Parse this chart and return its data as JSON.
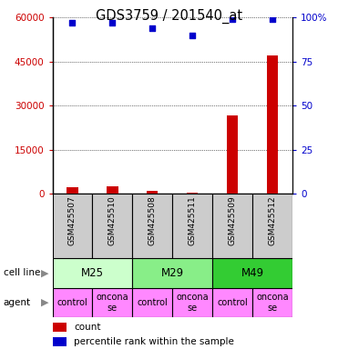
{
  "title": "GDS3759 / 201540_at",
  "samples": [
    "GSM425507",
    "GSM425510",
    "GSM425508",
    "GSM425511",
    "GSM425509",
    "GSM425512"
  ],
  "counts": [
    2200,
    2500,
    900,
    500,
    26500,
    47000
  ],
  "percentile_ranks": [
    97,
    97,
    94,
    90,
    99,
    99
  ],
  "cell_lines": [
    {
      "label": "M25",
      "start": 0,
      "end": 2,
      "color": "#ccffcc"
    },
    {
      "label": "M29",
      "start": 2,
      "end": 4,
      "color": "#88ee88"
    },
    {
      "label": "M49",
      "start": 4,
      "end": 6,
      "color": "#33cc33"
    }
  ],
  "agents": [
    "control",
    "onconase",
    "control",
    "onconase",
    "control",
    "onconase"
  ],
  "agent_color": "#ff88ff",
  "sample_bg_color": "#cccccc",
  "bar_color": "#cc0000",
  "point_color": "#0000cc",
  "left_ylim": [
    0,
    60000
  ],
  "left_yticks": [
    0,
    15000,
    30000,
    45000,
    60000
  ],
  "right_ylim": [
    0,
    100
  ],
  "right_yticks": [
    0,
    25,
    50,
    75,
    100
  ],
  "right_yticklabels": [
    "0",
    "25",
    "50",
    "75",
    "100%"
  ],
  "label_cell_line": "cell line",
  "label_agent": "agent",
  "legend_count": "count",
  "legend_pct": "percentile rank within the sample",
  "figsize": [
    3.71,
    3.84
  ],
  "dpi": 100,
  "left_ylabel_color": "#cc0000",
  "right_ylabel_color": "#0000cc"
}
